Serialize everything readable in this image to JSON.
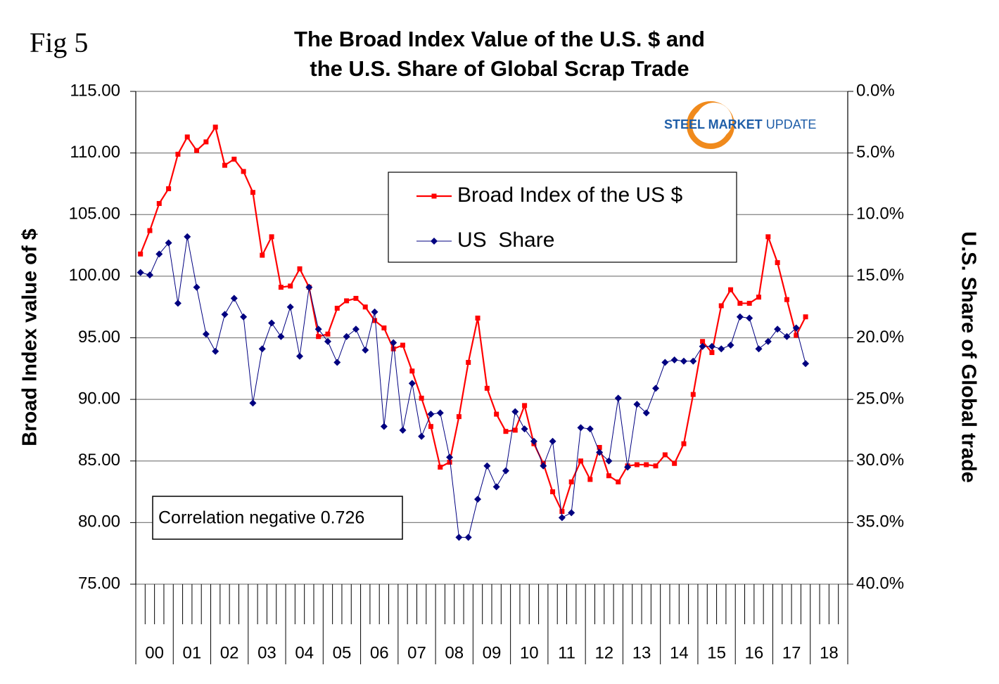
{
  "figure_label": "Fig 5",
  "logo": {
    "bold": "STEEL MARKET",
    "light": "UPDATE"
  },
  "chart_data": {
    "type": "line",
    "title": [
      "The Broad Index Value of the U.S. $ and",
      "the U.S. Share of Global Scrap Trade"
    ],
    "y_label": "Broad Index value of $",
    "y2_label": "U.S. Share of Global trade",
    "annotation": "Correlation negative 0.726",
    "categories": [
      "00",
      null,
      null,
      null,
      "01",
      null,
      null,
      null,
      "02",
      null,
      null,
      null,
      "03",
      null,
      null,
      null,
      "04",
      null,
      null,
      null,
      "05",
      null,
      null,
      null,
      "06",
      null,
      null,
      null,
      "07",
      null,
      null,
      null,
      "08",
      null,
      null,
      null,
      "09",
      null,
      null,
      null,
      "10",
      null,
      null,
      null,
      "11",
      null,
      null,
      null,
      "12",
      null,
      null,
      null,
      "13",
      null,
      null,
      null,
      "14",
      null,
      null,
      null,
      "15",
      null,
      null,
      null,
      "16",
      null,
      null,
      null,
      "17",
      null,
      null,
      null,
      "18",
      null,
      null,
      null
    ],
    "ylim": [
      75,
      115
    ],
    "yticks": [
      {
        "value": 75,
        "label": "75.00"
      },
      {
        "value": 80,
        "label": "80.00"
      },
      {
        "value": 85,
        "label": "85.00"
      },
      {
        "value": 90,
        "label": "90.00"
      },
      {
        "value": 95,
        "label": "95.00"
      },
      {
        "value": 100,
        "label": "100.00"
      },
      {
        "value": 105,
        "label": "105.00"
      },
      {
        "value": 110,
        "label": "110.00"
      },
      {
        "value": 115,
        "label": "115.00"
      }
    ],
    "y2lim": [
      40,
      0
    ],
    "y2ticks": [
      {
        "value": 0,
        "label": "0.0%"
      },
      {
        "value": 5,
        "label": "5.0%"
      },
      {
        "value": 10,
        "label": "10.0%"
      },
      {
        "value": 15,
        "label": "15.0%"
      },
      {
        "value": 20,
        "label": "20.0%"
      },
      {
        "value": 25,
        "label": "25.0%"
      },
      {
        "value": 30,
        "label": "30.0%"
      },
      {
        "value": 35,
        "label": "35.0%"
      },
      {
        "value": 40,
        "label": "40.0%"
      }
    ],
    "grid": true,
    "series": [
      {
        "name": "Broad Index of the US $",
        "color": "#ff0000",
        "marker": "square",
        "values": [
          101.8,
          103.7,
          105.9,
          107.1,
          109.9,
          111.3,
          110.2,
          110.9,
          112.1,
          109.0,
          109.5,
          108.5,
          106.8,
          101.7,
          103.2,
          99.1,
          99.2,
          100.6,
          99.1,
          95.1,
          95.3,
          97.4,
          98.0,
          98.2,
          97.5,
          96.4,
          95.8,
          94.1,
          94.4,
          92.3,
          90.1,
          87.8,
          84.5,
          84.9,
          88.6,
          93.0,
          96.6,
          90.9,
          88.8,
          87.4,
          87.5,
          89.5,
          86.4,
          84.8,
          82.5,
          80.9,
          83.3,
          85.0,
          83.5,
          86.1,
          83.8,
          83.3,
          84.6,
          84.7,
          84.7,
          84.6,
          85.5,
          84.8,
          86.4,
          90.4,
          94.7,
          93.8,
          97.6,
          98.9,
          97.8,
          97.8,
          98.3,
          103.2,
          101.1,
          98.1,
          95.2,
          96.7,
          null,
          null,
          null,
          null
        ]
      },
      {
        "name": "US  Share",
        "color": "#000080",
        "marker": "diamond",
        "axis": "y2",
        "values": [
          14.7,
          14.9,
          13.2,
          12.3,
          17.2,
          11.8,
          15.9,
          19.7,
          21.1,
          18.1,
          16.8,
          18.3,
          25.3,
          20.9,
          18.8,
          19.9,
          17.5,
          21.5,
          15.9,
          19.3,
          20.3,
          22.0,
          19.9,
          19.3,
          21.0,
          17.9,
          27.2,
          20.4,
          27.5,
          23.7,
          28.0,
          26.2,
          26.1,
          29.7,
          36.2,
          36.2,
          33.1,
          30.4,
          32.1,
          30.8,
          26.0,
          27.4,
          28.4,
          30.4,
          28.4,
          34.6,
          34.2,
          27.3,
          27.4,
          29.3,
          30.0,
          24.9,
          30.5,
          25.4,
          26.1,
          24.1,
          22.0,
          21.8,
          21.9,
          21.9,
          20.7,
          20.7,
          20.9,
          20.6,
          18.3,
          18.4,
          20.9,
          20.3,
          19.3,
          19.9,
          19.2,
          22.1,
          null,
          null,
          null,
          null
        ]
      }
    ]
  }
}
